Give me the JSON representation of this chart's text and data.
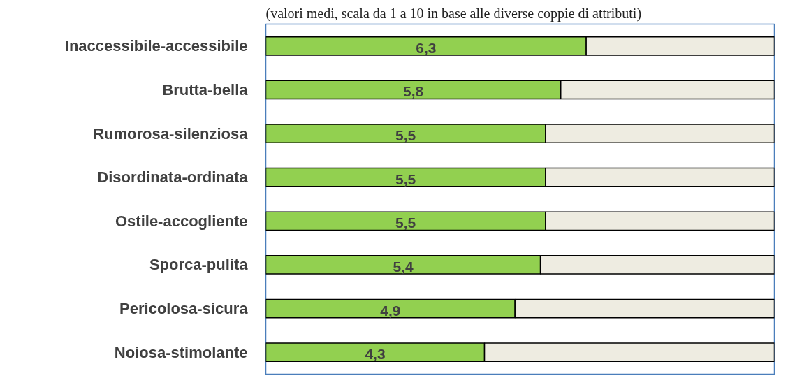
{
  "chart_data": {
    "type": "bar",
    "orientation": "horizontal",
    "stacked": true,
    "subtitle": "(valori medi, scala da 1 a 10 in base alle diverse coppie di attributi)",
    "categories": [
      "Inaccessibile-accessibile",
      "Brutta-bella",
      "Rumorosa-silenziosa",
      "Disordinata-ordinata",
      "Ostile-accogliente",
      "Sporca-pulita",
      "Pericolosa-sicura",
      "Noiosa-stimolante"
    ],
    "series": [
      {
        "color": "#92d050",
        "values": [
          6.3,
          5.8,
          5.5,
          5.5,
          5.5,
          5.4,
          4.9,
          4.3
        ],
        "value_labels": [
          "6,3",
          "5,8",
          "5,5",
          "5,5",
          "5,5",
          "5,4",
          "4,9",
          "4,3"
        ]
      },
      {
        "color": "#eeece1",
        "values": [
          3.7,
          4.2,
          4.5,
          4.5,
          4.5,
          4.6,
          5.1,
          5.7
        ]
      }
    ],
    "xlim": [
      0,
      10
    ],
    "tick_labels": "y",
    "grid": false
  }
}
